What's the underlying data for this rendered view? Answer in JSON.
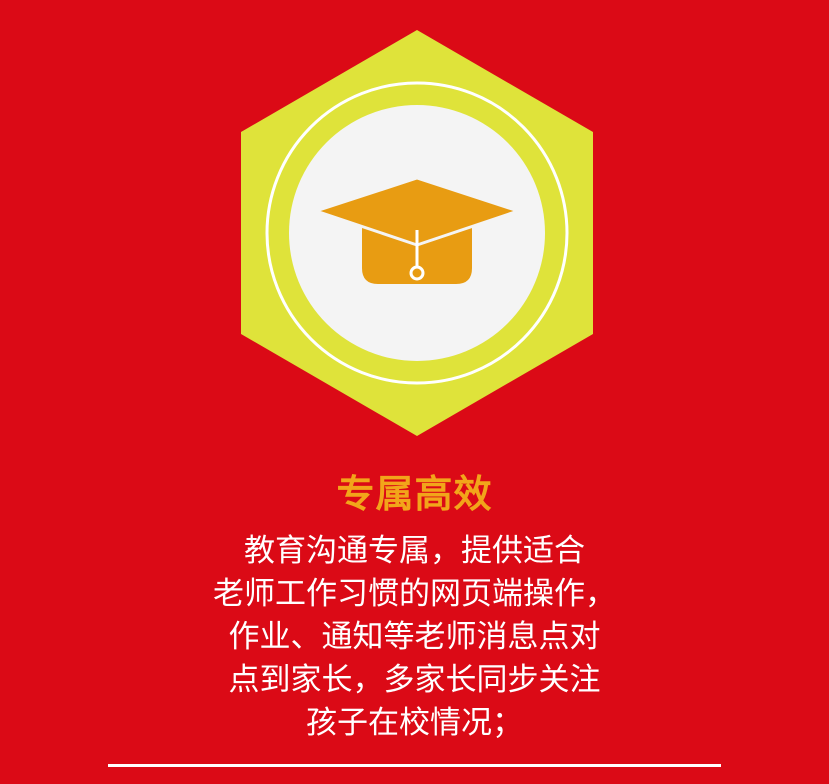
{
  "colors": {
    "background": "#db0a16",
    "hexagon": "#dfe33a",
    "circle": "#f4f4f4",
    "icon": "#e89c12",
    "title": "#f2a51a",
    "text": "#ffffff"
  },
  "emblem": {
    "icon": "graduation-cap-icon"
  },
  "feature": {
    "title": "专属高效",
    "description_lines": [
      "教育沟通专属，提供适合",
      "老师工作习惯的网页端操作，",
      "作业、通知等老师消息点对",
      "点到家长，多家长同步关注",
      "孩子在校情况；"
    ]
  }
}
